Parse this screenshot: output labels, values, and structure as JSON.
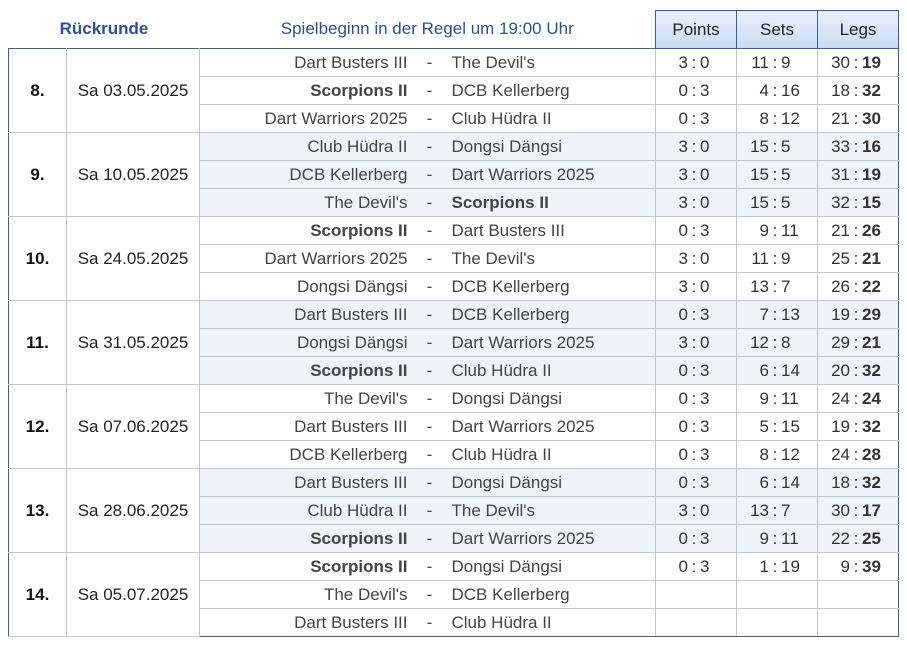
{
  "header": {
    "title": "Rückrunde",
    "note": "Spielbeginn in der Regel um 19:00 Uhr",
    "col_points": "Points",
    "col_sets": "Sets",
    "col_legs": "Legs"
  },
  "rounds": [
    {
      "label": "8.",
      "date": "Sa 03.05.2025",
      "matches": [
        {
          "home": "Dart Busters III",
          "away": "The Devil's",
          "home_bold": false,
          "away_bold": false,
          "sep": "-",
          "points": [
            "3",
            "0"
          ],
          "sets": [
            "11",
            "9"
          ],
          "legs": [
            "30",
            "19"
          ]
        },
        {
          "home": "Scorpions II",
          "away": "DCB Kellerberg",
          "home_bold": true,
          "away_bold": false,
          "sep": "-",
          "points": [
            "0",
            "3"
          ],
          "sets": [
            "4",
            "16"
          ],
          "legs": [
            "18",
            "32"
          ]
        },
        {
          "home": "Dart Warriors 2025",
          "away": "Club Hüdra II",
          "home_bold": false,
          "away_bold": false,
          "sep": "-",
          "points": [
            "0",
            "3"
          ],
          "sets": [
            "8",
            "12"
          ],
          "legs": [
            "21",
            "30"
          ]
        }
      ]
    },
    {
      "label": "9.",
      "date": "Sa 10.05.2025",
      "matches": [
        {
          "home": "Club Hüdra II",
          "away": "Dongsi Dängsi",
          "home_bold": false,
          "away_bold": false,
          "sep": "-",
          "points": [
            "3",
            "0"
          ],
          "sets": [
            "15",
            "5"
          ],
          "legs": [
            "33",
            "16"
          ]
        },
        {
          "home": "DCB Kellerberg",
          "away": "Dart Warriors 2025",
          "home_bold": false,
          "away_bold": false,
          "sep": "-",
          "points": [
            "3",
            "0"
          ],
          "sets": [
            "15",
            "5"
          ],
          "legs": [
            "31",
            "19"
          ]
        },
        {
          "home": "The Devil's",
          "away": "Scorpions II",
          "home_bold": false,
          "away_bold": true,
          "sep": "-",
          "points": [
            "3",
            "0"
          ],
          "sets": [
            "15",
            "5"
          ],
          "legs": [
            "32",
            "15"
          ]
        }
      ]
    },
    {
      "label": "10.",
      "date": "Sa 24.05.2025",
      "matches": [
        {
          "home": "Scorpions II",
          "away": "Dart Busters III",
          "home_bold": true,
          "away_bold": false,
          "sep": "-",
          "points": [
            "0",
            "3"
          ],
          "sets": [
            "9",
            "11"
          ],
          "legs": [
            "21",
            "26"
          ]
        },
        {
          "home": "Dart Warriors 2025",
          "away": "The Devil's",
          "home_bold": false,
          "away_bold": false,
          "sep": "-",
          "points": [
            "3",
            "0"
          ],
          "sets": [
            "11",
            "9"
          ],
          "legs": [
            "25",
            "21"
          ]
        },
        {
          "home": "Dongsi Dängsi",
          "away": "DCB Kellerberg",
          "home_bold": false,
          "away_bold": false,
          "sep": "-",
          "points": [
            "3",
            "0"
          ],
          "sets": [
            "13",
            "7"
          ],
          "legs": [
            "26",
            "22"
          ]
        }
      ]
    },
    {
      "label": "11.",
      "date": "Sa 31.05.2025",
      "matches": [
        {
          "home": "Dart Busters III",
          "away": "DCB Kellerberg",
          "home_bold": false,
          "away_bold": false,
          "sep": "-",
          "points": [
            "0",
            "3"
          ],
          "sets": [
            "7",
            "13"
          ],
          "legs": [
            "19",
            "29"
          ]
        },
        {
          "home": "Dongsi Dängsi",
          "away": "Dart Warriors 2025",
          "home_bold": false,
          "away_bold": false,
          "sep": "-",
          "points": [
            "3",
            "0"
          ],
          "sets": [
            "12",
            "8"
          ],
          "legs": [
            "29",
            "21"
          ]
        },
        {
          "home": "Scorpions II",
          "away": "Club Hüdra II",
          "home_bold": true,
          "away_bold": false,
          "sep": "-",
          "points": [
            "0",
            "3"
          ],
          "sets": [
            "6",
            "14"
          ],
          "legs": [
            "20",
            "32"
          ]
        }
      ]
    },
    {
      "label": "12.",
      "date": "Sa 07.06.2025",
      "matches": [
        {
          "home": "The Devil's",
          "away": "Dongsi Dängsi",
          "home_bold": false,
          "away_bold": false,
          "sep": "-",
          "points": [
            "0",
            "3"
          ],
          "sets": [
            "9",
            "11"
          ],
          "legs": [
            "24",
            "24"
          ]
        },
        {
          "home": "Dart Busters III",
          "away": "Dart Warriors 2025",
          "home_bold": false,
          "away_bold": false,
          "sep": "-",
          "points": [
            "0",
            "3"
          ],
          "sets": [
            "5",
            "15"
          ],
          "legs": [
            "19",
            "32"
          ]
        },
        {
          "home": "DCB Kellerberg",
          "away": "Club Hüdra II",
          "home_bold": false,
          "away_bold": false,
          "sep": "-",
          "points": [
            "0",
            "3"
          ],
          "sets": [
            "8",
            "12"
          ],
          "legs": [
            "24",
            "28"
          ]
        }
      ]
    },
    {
      "label": "13.",
      "date": "Sa 28.06.2025",
      "matches": [
        {
          "home": "Dart Busters III",
          "away": "Dongsi Dängsi",
          "home_bold": false,
          "away_bold": false,
          "sep": "-",
          "points": [
            "0",
            "3"
          ],
          "sets": [
            "6",
            "14"
          ],
          "legs": [
            "18",
            "32"
          ]
        },
        {
          "home": "Club Hüdra II",
          "away": "The Devil's",
          "home_bold": false,
          "away_bold": false,
          "sep": "-",
          "points": [
            "3",
            "0"
          ],
          "sets": [
            "13",
            "7"
          ],
          "legs": [
            "30",
            "17"
          ]
        },
        {
          "home": "Scorpions II",
          "away": "Dart Warriors 2025",
          "home_bold": true,
          "away_bold": false,
          "sep": "-",
          "points": [
            "0",
            "3"
          ],
          "sets": [
            "9",
            "11"
          ],
          "legs": [
            "22",
            "25"
          ]
        }
      ]
    },
    {
      "label": "14.",
      "date": "Sa 05.07.2025",
      "matches": [
        {
          "home": "Scorpions II",
          "away": "Dongsi Dängsi",
          "home_bold": true,
          "away_bold": false,
          "sep": "-",
          "points": [
            "0",
            "3"
          ],
          "sets": [
            "1",
            "19"
          ],
          "legs": [
            "9",
            "39"
          ]
        },
        {
          "home": "The Devil's",
          "away": "DCB Kellerberg",
          "home_bold": false,
          "away_bold": false,
          "sep": "-",
          "points": null,
          "sets": null,
          "legs": null
        },
        {
          "home": "Dart Busters III",
          "away": "Club Hüdra II",
          "home_bold": false,
          "away_bold": false,
          "sep": "-",
          "points": null,
          "sets": null,
          "legs": null
        }
      ]
    }
  ],
  "colors": {
    "header_text": "#2f4f8f",
    "border_dark": "#3f5f8f",
    "alt_row": "#eef3f9"
  }
}
